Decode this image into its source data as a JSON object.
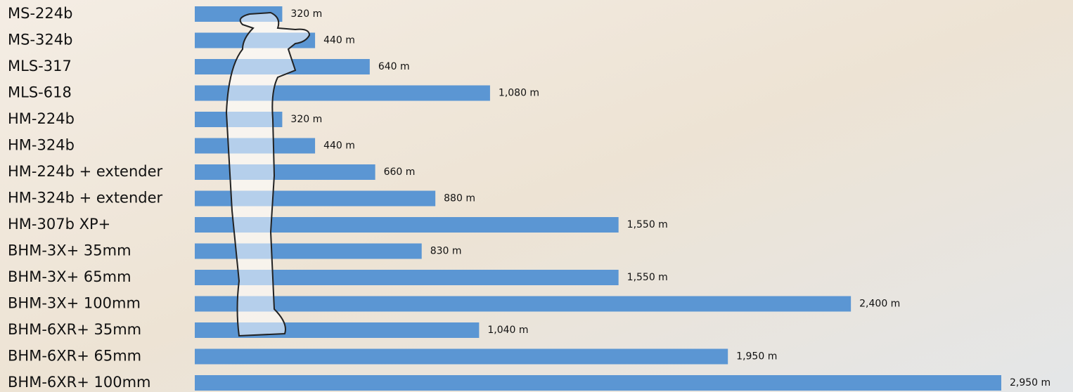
{
  "chart_data": {
    "type": "bar",
    "orientation": "horizontal",
    "categories": [
      "MS-224b",
      "MS-324b",
      "MLS-317",
      "MLS-618",
      "HM-224b",
      "HM-324b",
      "HM-224b + extender",
      "HM-324b + extender",
      "HM-307b XP+",
      "BHM-3X+ 35mm",
      "BHM-3X+ 65mm",
      "BHM-3X+ 100mm",
      "BHM-6XR+ 35mm",
      "BHM-6XR+ 65mm",
      "BHM-6XR+ 100mm"
    ],
    "values": [
      320,
      440,
      640,
      1080,
      320,
      440,
      660,
      880,
      1550,
      830,
      1550,
      2400,
      1040,
      1950,
      2950
    ],
    "value_labels": [
      "320 m",
      "440 m",
      "640 m",
      "1,080 m",
      "320 m",
      "440 m",
      "660 m",
      "880 m",
      "1,550 m",
      "830 m",
      "1,550 m",
      "2,400 m",
      "1,040 m",
      "1,950 m",
      "2,950 m"
    ],
    "color": "#5b96d3"
  }
}
